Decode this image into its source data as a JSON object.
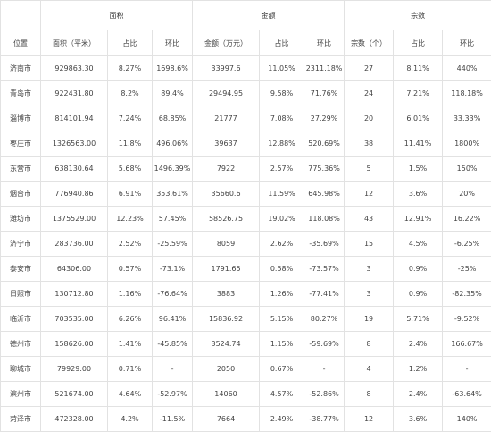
{
  "table": {
    "groups": [
      "面积",
      "金额",
      "宗数"
    ],
    "columns": [
      "位置",
      "面积（平米）",
      "占比",
      "环比",
      "金额（万元）",
      "占比",
      "环比",
      "宗数（个）",
      "占比",
      "环比"
    ],
    "rows": [
      [
        "济南市",
        "929863.30",
        "8.27%",
        "1698.6%",
        "33997.6",
        "11.05%",
        "2311.18%",
        "27",
        "8.11%",
        "440%"
      ],
      [
        "青岛市",
        "922431.80",
        "8.2%",
        "89.4%",
        "29494.95",
        "9.58%",
        "71.76%",
        "24",
        "7.21%",
        "118.18%"
      ],
      [
        "淄博市",
        "814101.94",
        "7.24%",
        "68.85%",
        "21777",
        "7.08%",
        "27.29%",
        "20",
        "6.01%",
        "33.33%"
      ],
      [
        "枣庄市",
        "1326563.00",
        "11.8%",
        "496.06%",
        "39637",
        "12.88%",
        "520.69%",
        "38",
        "11.41%",
        "1800%"
      ],
      [
        "东营市",
        "638130.64",
        "5.68%",
        "1496.39%",
        "7922",
        "2.57%",
        "775.36%",
        "5",
        "1.5%",
        "150%"
      ],
      [
        "烟台市",
        "776940.86",
        "6.91%",
        "353.61%",
        "35660.6",
        "11.59%",
        "645.98%",
        "12",
        "3.6%",
        "20%"
      ],
      [
        "潍坊市",
        "1375529.00",
        "12.23%",
        "57.45%",
        "58526.75",
        "19.02%",
        "118.08%",
        "43",
        "12.91%",
        "16.22%"
      ],
      [
        "济宁市",
        "283736.00",
        "2.52%",
        "-25.59%",
        "8059",
        "2.62%",
        "-35.69%",
        "15",
        "4.5%",
        "-6.25%"
      ],
      [
        "泰安市",
        "64306.00",
        "0.57%",
        "-73.1%",
        "1791.65",
        "0.58%",
        "-73.57%",
        "3",
        "0.9%",
        "-25%"
      ],
      [
        "日照市",
        "130712.80",
        "1.16%",
        "-76.64%",
        "3883",
        "1.26%",
        "-77.41%",
        "3",
        "0.9%",
        "-82.35%"
      ],
      [
        "临沂市",
        "703535.00",
        "6.26%",
        "96.41%",
        "15836.92",
        "5.15%",
        "80.27%",
        "19",
        "5.71%",
        "-9.52%"
      ],
      [
        "德州市",
        "158626.00",
        "1.41%",
        "-45.85%",
        "3524.74",
        "1.15%",
        "-59.69%",
        "8",
        "2.4%",
        "166.67%"
      ],
      [
        "聊城市",
        "79929.00",
        "0.71%",
        "-",
        "2050",
        "0.67%",
        "-",
        "4",
        "1.2%",
        "-"
      ],
      [
        "滨州市",
        "521674.00",
        "4.64%",
        "-52.97%",
        "14060",
        "4.57%",
        "-52.86%",
        "8",
        "2.4%",
        "-63.64%"
      ],
      [
        "菏泽市",
        "472328.00",
        "4.2%",
        "-11.5%",
        "7664",
        "2.49%",
        "-38.77%",
        "12",
        "3.6%",
        "140%"
      ]
    ]
  }
}
